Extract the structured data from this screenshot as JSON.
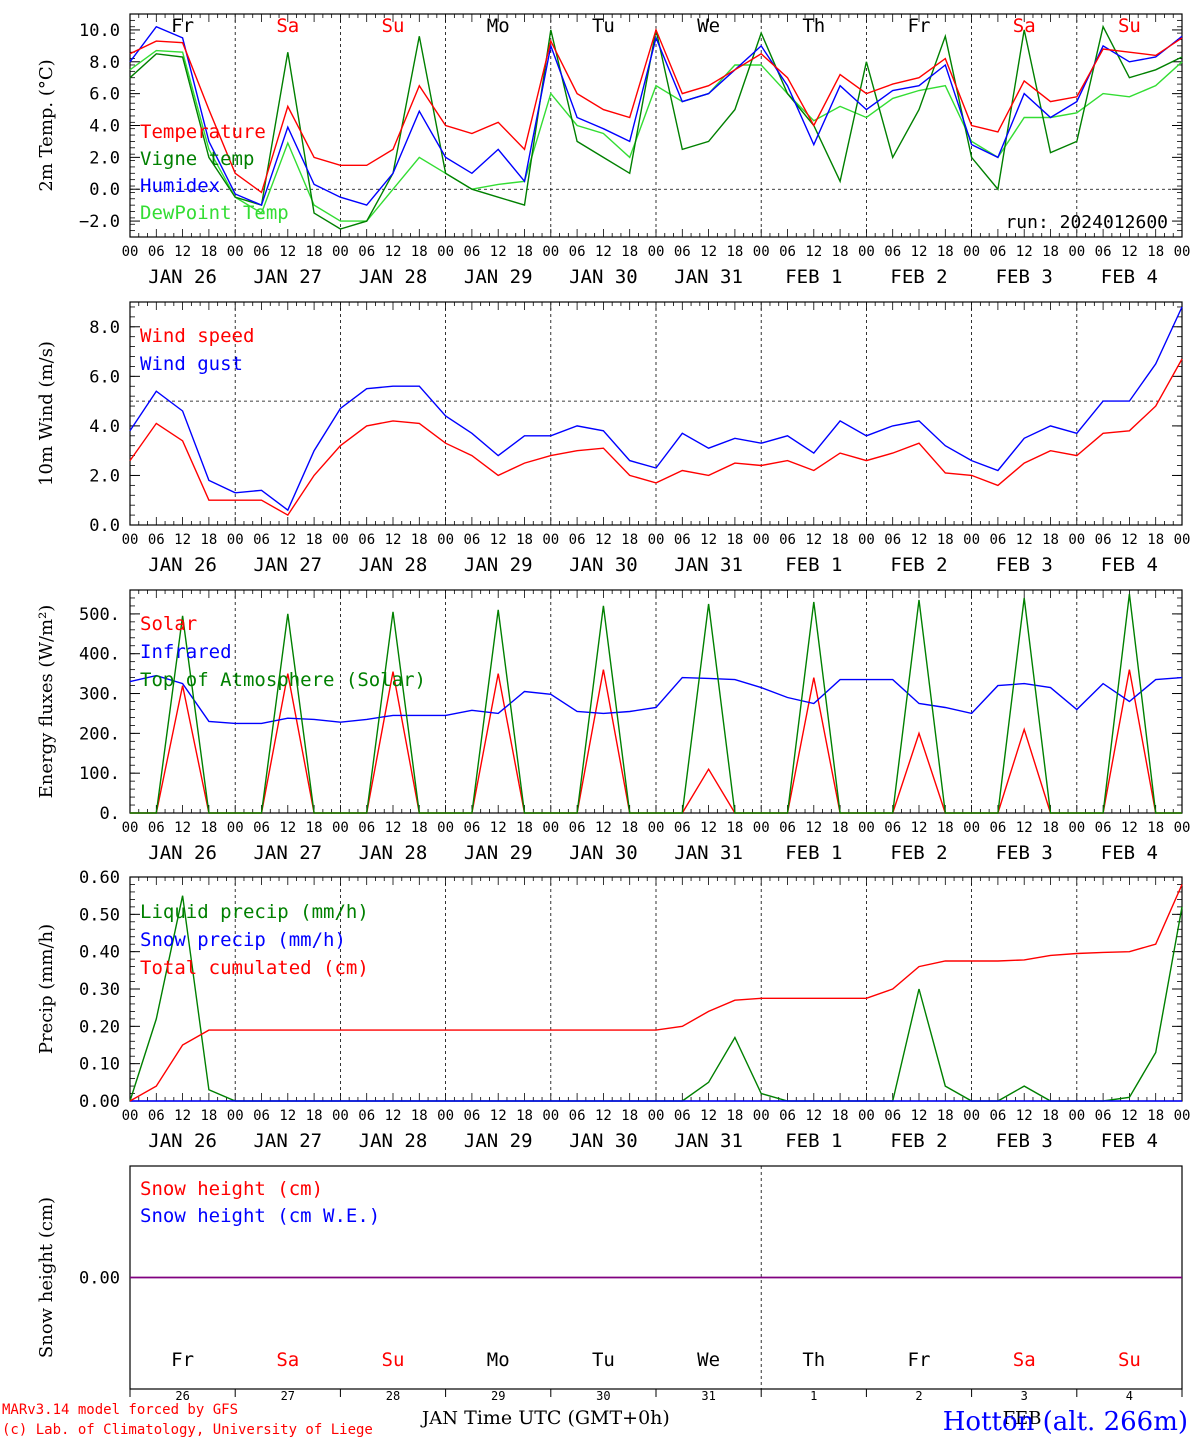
{
  "colors": {
    "red": "#ff0000",
    "dark_green": "#008000",
    "blue": "#0000ff",
    "light_green": "#33dd33",
    "purple": "#800080",
    "black": "#000000"
  },
  "day_labels": [
    "Fr",
    "Sa",
    "Su",
    "Mo",
    "Tu",
    "We",
    "Th",
    "Fr",
    "Sa",
    "Su"
  ],
  "weekend_flags": [
    false,
    true,
    true,
    false,
    false,
    false,
    false,
    false,
    true,
    true
  ],
  "date_labels": [
    "JAN 26",
    "JAN 27",
    "JAN 28",
    "JAN 29",
    "JAN 30",
    "JAN 31",
    "FEB  1",
    "FEB  2",
    "FEB  3",
    "FEB  4"
  ],
  "hour_tick_labels": [
    "00",
    "06",
    "12",
    "18"
  ],
  "bottom_day_numbers": [
    "26",
    "27",
    "28",
    "29",
    "30",
    "31",
    "1",
    "2",
    "3",
    "4"
  ],
  "month_labels": [
    "JAN",
    "FEB"
  ],
  "xlabel": "Time UTC (GMT+0h)",
  "footer": {
    "model_line": "MARv3.14 model forced by GFS",
    "credit_line": "(c) Lab. of Climatology, University of Liege",
    "station": "Hotton (alt. 266m)"
  },
  "chart_data": [
    {
      "type": "line",
      "ylabel": "2m Temp. (°C)",
      "ylim": [
        -3,
        11
      ],
      "yticks": [
        -2,
        0,
        2,
        4,
        6,
        8,
        10
      ],
      "ytick_labels": [
        "−2.0",
        "0.0",
        "2.0",
        "4.0",
        "6.0",
        "8.0",
        "10.0"
      ],
      "zero_line": 0,
      "annotation": "run: 2024012600",
      "x_hours_from_jan26_00": [
        0,
        6,
        12,
        18,
        24,
        30,
        36,
        42,
        48,
        54,
        60,
        66,
        72,
        78,
        84,
        90,
        96,
        102,
        108,
        114,
        120,
        126,
        132,
        138,
        144,
        150,
        156,
        162,
        168,
        174,
        180,
        186,
        192,
        198,
        204,
        210,
        216,
        222,
        228,
        234,
        240
      ],
      "series": [
        {
          "name": "Temperature",
          "color": "#ff0000",
          "values": [
            8.5,
            9.3,
            9.2,
            5.0,
            1.0,
            -0.2,
            5.2,
            2.0,
            1.5,
            1.5,
            2.5,
            6.5,
            4.0,
            3.5,
            4.2,
            2.5,
            9.3,
            6.0,
            5.0,
            4.5,
            10.0,
            6.0,
            6.5,
            7.5,
            8.5,
            7.0,
            4.0,
            7.2,
            6.0,
            6.6,
            7.0,
            8.2,
            4.0,
            3.6,
            6.8,
            5.5,
            5.8,
            8.8,
            8.6,
            8.4,
            9.5
          ]
        },
        {
          "name": "Vigne temp",
          "color": "#008000",
          "values": [
            7.0,
            8.5,
            8.3,
            2.0,
            -0.5,
            -1.0,
            8.6,
            -1.5,
            -2.5,
            -2.0,
            1.0,
            9.6,
            1.0,
            0.0,
            -0.5,
            -1.0,
            10.0,
            3.0,
            2.0,
            1.0,
            10.0,
            2.5,
            3.0,
            5.0,
            9.8,
            6.0,
            4.0,
            0.5,
            8.0,
            2.0,
            5.0,
            9.6,
            2.0,
            0.0,
            10.0,
            2.3,
            3.0,
            10.2,
            7.0,
            7.5,
            8.3
          ]
        },
        {
          "name": "Humidex",
          "color": "#0000ff",
          "values": [
            8.0,
            10.2,
            9.5,
            3.0,
            -0.3,
            -1.0,
            3.9,
            0.3,
            -0.5,
            -1.0,
            1.0,
            4.9,
            2.0,
            1.0,
            2.5,
            0.5,
            9.0,
            4.5,
            3.8,
            3.0,
            9.5,
            5.5,
            6.0,
            7.5,
            9.0,
            6.5,
            2.8,
            6.5,
            5.0,
            6.2,
            6.5,
            7.8,
            2.8,
            2.0,
            6.0,
            4.5,
            5.5,
            9.0,
            8.0,
            8.3,
            9.6
          ]
        },
        {
          "name": "DewPoint Temp",
          "color": "#33dd33",
          "values": [
            7.5,
            8.7,
            8.6,
            2.5,
            -0.5,
            -1.5,
            2.9,
            -1.0,
            -2.0,
            -2.0,
            0.0,
            2.0,
            1.0,
            0.0,
            0.3,
            0.5,
            6.0,
            4.0,
            3.5,
            2.0,
            6.5,
            5.5,
            6.0,
            7.8,
            7.8,
            6.0,
            4.3,
            5.2,
            4.5,
            5.7,
            6.2,
            6.5,
            3.0,
            2.0,
            4.5,
            4.5,
            4.8,
            6.0,
            5.8,
            6.5,
            8.0
          ]
        }
      ]
    },
    {
      "type": "line",
      "ylabel": "10m Wind (m/s)",
      "ylim": [
        0,
        9
      ],
      "yticks": [
        0,
        2,
        4,
        6,
        8
      ],
      "ytick_labels": [
        "0.0",
        "2.0",
        "4.0",
        "6.0",
        "8.0"
      ],
      "dashed_reference": 5.0,
      "x_hours_from_jan26_00": [
        0,
        6,
        12,
        18,
        24,
        30,
        36,
        42,
        48,
        54,
        60,
        66,
        72,
        78,
        84,
        90,
        96,
        102,
        108,
        114,
        120,
        126,
        132,
        138,
        144,
        150,
        156,
        162,
        168,
        174,
        180,
        186,
        192,
        198,
        204,
        210,
        216,
        222,
        228,
        234,
        240
      ],
      "series": [
        {
          "name": "Wind speed",
          "color": "#ff0000",
          "values": [
            2.6,
            4.1,
            3.4,
            1.0,
            1.0,
            1.0,
            0.4,
            2.0,
            3.2,
            4.0,
            4.2,
            4.1,
            3.3,
            2.8,
            2.0,
            2.5,
            2.8,
            3.0,
            3.1,
            2.0,
            1.7,
            2.2,
            2.0,
            2.5,
            2.4,
            2.6,
            2.2,
            2.9,
            2.6,
            2.9,
            3.3,
            2.1,
            2.0,
            1.6,
            2.5,
            3.0,
            2.8,
            3.7,
            3.8,
            4.8,
            6.7
          ]
        },
        {
          "name": "Wind gust",
          "color": "#0000ff",
          "values": [
            3.8,
            5.4,
            4.6,
            1.8,
            1.3,
            1.4,
            0.6,
            3.0,
            4.7,
            5.5,
            5.6,
            5.6,
            4.4,
            3.7,
            2.8,
            3.6,
            3.6,
            4.0,
            3.8,
            2.6,
            2.3,
            3.7,
            3.1,
            3.5,
            3.3,
            3.6,
            2.9,
            4.2,
            3.6,
            4.0,
            4.2,
            3.2,
            2.6,
            2.2,
            3.5,
            4.0,
            3.7,
            5.0,
            5.0,
            6.5,
            8.8
          ]
        }
      ]
    },
    {
      "type": "line",
      "ylabel": "Energy fluxes (W/m²)",
      "ylim": [
        0,
        560
      ],
      "yticks": [
        0,
        100,
        200,
        300,
        400,
        500
      ],
      "ytick_labels": [
        "0.",
        "100.",
        "200.",
        "300.",
        "400.",
        "500."
      ],
      "x_hours_from_jan26_00": [
        0,
        6,
        12,
        18,
        24,
        30,
        36,
        42,
        48,
        54,
        60,
        66,
        72,
        78,
        84,
        90,
        96,
        102,
        108,
        114,
        120,
        126,
        132,
        138,
        144,
        150,
        156,
        162,
        168,
        174,
        180,
        186,
        192,
        198,
        204,
        210,
        216,
        222,
        228,
        234,
        240
      ],
      "series": [
        {
          "name": "Solar",
          "color": "#ff0000",
          "values": [
            0,
            0,
            320,
            0,
            0,
            0,
            350,
            0,
            0,
            0,
            355,
            0,
            0,
            0,
            350,
            0,
            0,
            0,
            360,
            0,
            0,
            0,
            110,
            0,
            0,
            0,
            340,
            0,
            0,
            0,
            200,
            0,
            0,
            0,
            210,
            0,
            0,
            0,
            360,
            0,
            0
          ]
        },
        {
          "name": "Infrared",
          "color": "#0000ff",
          "values": [
            330,
            345,
            325,
            230,
            225,
            225,
            238,
            235,
            228,
            235,
            245,
            245,
            245,
            258,
            250,
            305,
            298,
            255,
            250,
            255,
            265,
            340,
            338,
            335,
            315,
            290,
            275,
            335,
            335,
            335,
            275,
            265,
            250,
            320,
            325,
            315,
            260,
            325,
            280,
            335,
            340
          ]
        },
        {
          "name": "Top of Atmosphere (Solar)",
          "color": "#008000",
          "values": [
            0,
            0,
            495,
            0,
            0,
            0,
            500,
            0,
            0,
            0,
            505,
            0,
            0,
            0,
            510,
            0,
            0,
            0,
            520,
            0,
            0,
            0,
            525,
            0,
            0,
            0,
            530,
            0,
            0,
            0,
            535,
            0,
            0,
            0,
            540,
            0,
            0,
            0,
            550,
            0,
            0
          ]
        }
      ]
    },
    {
      "type": "line",
      "ylabel": "Precip (mm/h)",
      "ylim": [
        0,
        0.6
      ],
      "yticks": [
        0,
        0.1,
        0.2,
        0.3,
        0.4,
        0.5,
        0.6
      ],
      "ytick_labels": [
        "0.00",
        "0.10",
        "0.20",
        "0.30",
        "0.40",
        "0.50",
        "0.60"
      ],
      "x_hours_from_jan26_00": [
        0,
        6,
        12,
        18,
        24,
        30,
        36,
        42,
        48,
        54,
        60,
        66,
        72,
        78,
        84,
        90,
        96,
        102,
        108,
        114,
        120,
        126,
        132,
        138,
        144,
        150,
        156,
        162,
        168,
        174,
        180,
        186,
        192,
        198,
        204,
        210,
        216,
        222,
        228,
        234,
        240
      ],
      "series": [
        {
          "name": "Liquid precip (mm/h)",
          "color": "#008000",
          "values": [
            0,
            0.22,
            0.55,
            0.03,
            0,
            0,
            0,
            0,
            0,
            0,
            0,
            0,
            0,
            0,
            0,
            0,
            0,
            0,
            0,
            0,
            0,
            0,
            0.05,
            0.17,
            0.02,
            0,
            0,
            0,
            0,
            0,
            0.3,
            0.04,
            0,
            0,
            0.04,
            0,
            0,
            0,
            0.01,
            0.13,
            0.52
          ]
        },
        {
          "name": "Snow precip (mm/h)",
          "color": "#0000ff",
          "values": [
            0,
            0,
            0,
            0,
            0,
            0,
            0,
            0,
            0,
            0,
            0,
            0,
            0,
            0,
            0,
            0,
            0,
            0,
            0,
            0,
            0,
            0,
            0,
            0,
            0,
            0,
            0,
            0,
            0,
            0,
            0,
            0,
            0,
            0,
            0,
            0,
            0,
            0,
            0,
            0,
            0
          ]
        },
        {
          "name": "Total cumulated (cm)",
          "color": "#ff0000",
          "values": [
            0.0,
            0.04,
            0.15,
            0.19,
            0.19,
            0.19,
            0.19,
            0.19,
            0.19,
            0.19,
            0.19,
            0.19,
            0.19,
            0.19,
            0.19,
            0.19,
            0.19,
            0.19,
            0.19,
            0.19,
            0.19,
            0.2,
            0.24,
            0.27,
            0.275,
            0.275,
            0.275,
            0.275,
            0.275,
            0.3,
            0.36,
            0.375,
            0.375,
            0.375,
            0.378,
            0.39,
            0.395,
            0.398,
            0.4,
            0.42,
            0.58
          ]
        }
      ]
    },
    {
      "type": "line",
      "ylabel": "Snow height (cm)",
      "ylim": [
        -1,
        1
      ],
      "yticks": [
        0
      ],
      "ytick_labels": [
        "0.00"
      ],
      "x_hours_from_jan26_00": [
        0,
        240
      ],
      "series": [
        {
          "name": "Snow height (cm)",
          "color": "#ff0000",
          "values": [
            0,
            0
          ]
        },
        {
          "name": "Snow height (cm W.E.)",
          "color": "#0000ff",
          "values": [
            0,
            0
          ]
        }
      ]
    }
  ]
}
